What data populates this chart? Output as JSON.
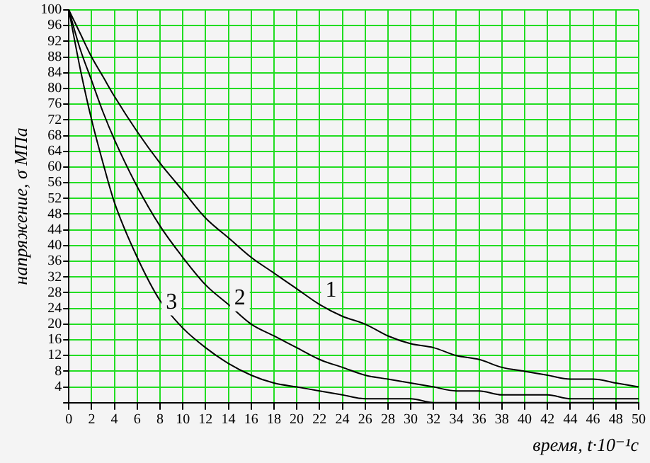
{
  "chart_data": {
    "type": "line",
    "xlabel": "время, t·10⁻¹с",
    "ylabel": "напряжение, σ МПа",
    "x": [
      0,
      1,
      2,
      3,
      4,
      6,
      8,
      10,
      12,
      14,
      16,
      18,
      20,
      22,
      24,
      26,
      28,
      30,
      32,
      34,
      36,
      38,
      40,
      42,
      44,
      46,
      48,
      50
    ],
    "series": [
      {
        "name": "1",
        "color": "#000000",
        "values": [
          100,
          94,
          88,
          83,
          78,
          69,
          61,
          54,
          47,
          42,
          37,
          33,
          29,
          25,
          22,
          20,
          17,
          15,
          14,
          12,
          11,
          9,
          8,
          7,
          6,
          6,
          5,
          4
        ]
      },
      {
        "name": "2",
        "color": "#000000",
        "values": [
          100,
          90,
          82,
          74,
          67,
          55,
          45,
          37,
          30,
          25,
          20,
          17,
          14,
          11,
          9,
          7,
          6,
          5,
          4,
          3,
          3,
          2,
          2,
          2,
          1,
          1,
          1,
          1
        ]
      },
      {
        "name": "3",
        "color": "#000000",
        "values": [
          100,
          85,
          72,
          61,
          51,
          37,
          26,
          19,
          14,
          10,
          7,
          5,
          4,
          3,
          2,
          1,
          1,
          1,
          0,
          0,
          0,
          0,
          0,
          0,
          0,
          0,
          0,
          0
        ]
      }
    ],
    "xlim": [
      0,
      50
    ],
    "ylim": [
      0,
      100
    ],
    "xticks": [
      0,
      2,
      4,
      6,
      8,
      10,
      12,
      14,
      16,
      18,
      20,
      22,
      24,
      26,
      28,
      30,
      32,
      34,
      36,
      38,
      40,
      42,
      44,
      46,
      48,
      50
    ],
    "yticks": [
      {
        "value": 0,
        "label": null
      },
      4,
      8,
      12,
      16,
      20,
      24,
      28,
      32,
      36,
      40,
      44,
      48,
      52,
      56,
      60,
      64,
      68,
      72,
      76,
      80,
      84,
      88,
      92,
      96,
      100
    ],
    "grid": true,
    "legend": false,
    "marker": "none",
    "line_style": "solid"
  }
}
